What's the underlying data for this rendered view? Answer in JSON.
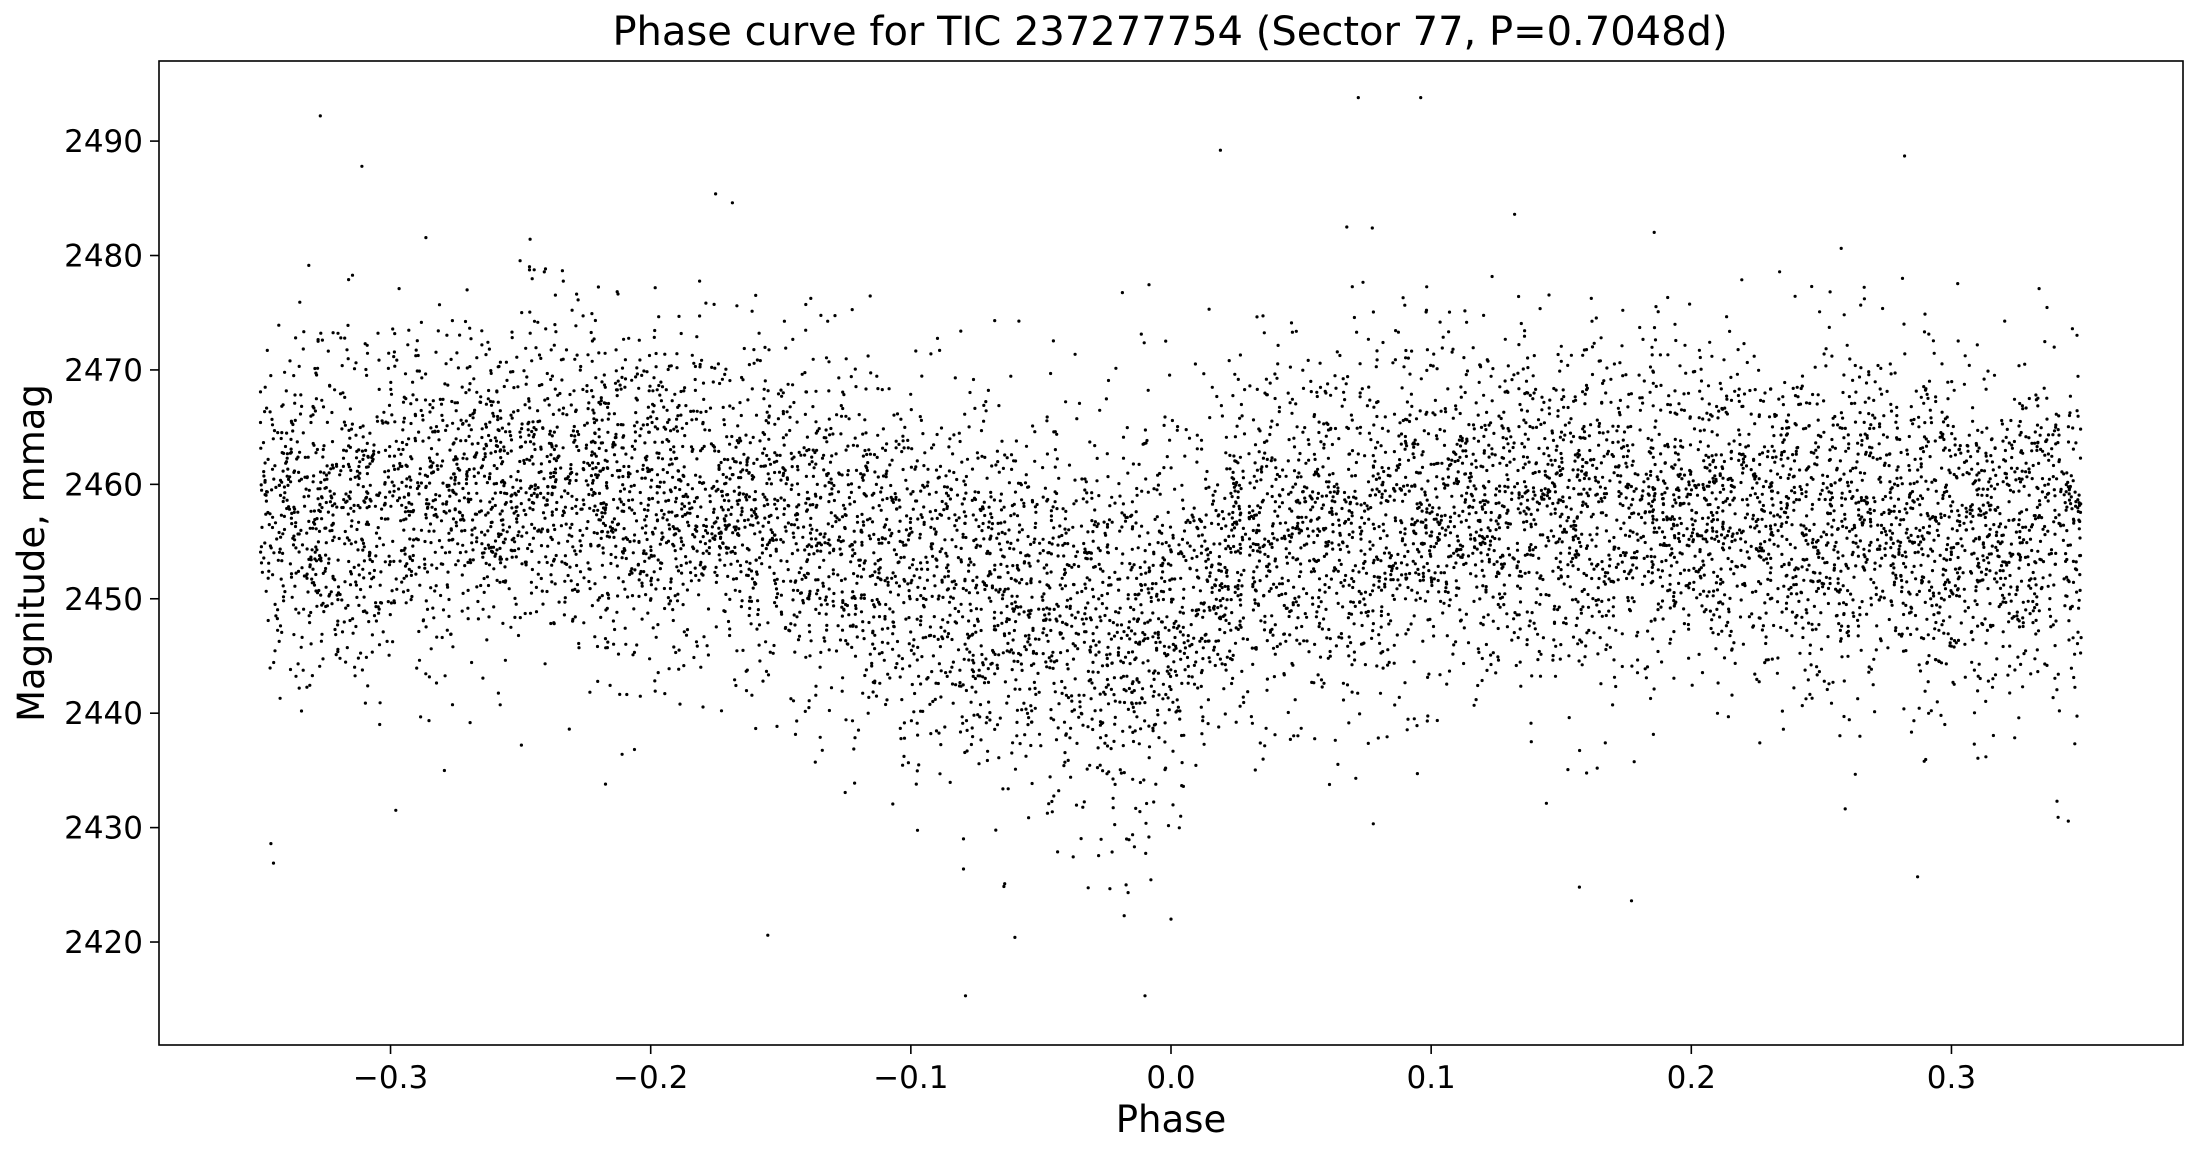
{
  "chart_data": {
    "type": "scatter",
    "title": "Phase curve for TIC 237277754 (Sector 77, P=0.7048d)",
    "xlabel": "Phase",
    "ylabel": "Magnitude, mmag",
    "xlim": [
      -0.389,
      0.389
    ],
    "ylim": [
      2411,
      2497
    ],
    "xticks": [
      -0.3,
      -0.2,
      -0.1,
      0.0,
      0.1,
      0.2,
      0.3
    ],
    "xtick_labels": [
      "−0.3",
      "−0.2",
      "−0.1",
      "0.0",
      "0.1",
      "0.2",
      "0.3"
    ],
    "yticks": [
      2420,
      2430,
      2440,
      2450,
      2460,
      2470,
      2480,
      2490
    ],
    "ytick_labels": [
      "2420",
      "2430",
      "2440",
      "2450",
      "2460",
      "2470",
      "2480",
      "2490"
    ],
    "grid": false,
    "legend": "none",
    "marker_color": "#000000",
    "series": [
      {
        "phase_range": [
          -0.35,
          0.35
        ],
        "point_count": 9000,
        "binned_profile": {
          "phase": [
            -0.35,
            -0.3,
            -0.25,
            -0.2,
            -0.15,
            -0.1,
            -0.08,
            -0.05,
            -0.03,
            -0.01,
            0.0,
            0.02,
            0.05,
            0.1,
            0.15,
            0.2,
            0.25,
            0.3,
            0.35
          ],
          "mean_mmag": [
            2457,
            2459,
            2460,
            2459,
            2457,
            2453,
            2451,
            2450,
            2448,
            2448,
            2450,
            2454,
            2455,
            2458,
            2458,
            2458,
            2457,
            2456,
            2456
          ],
          "scatter_sigma_mmag": [
            7.5,
            7.5,
            7.5,
            7.5,
            7.5,
            8.0,
            8.5,
            8.5,
            9.0,
            9.0,
            8.5,
            7.8,
            7.5,
            7.5,
            7.5,
            7.5,
            7.5,
            7.5,
            7.5
          ]
        },
        "notable_points": [
          {
            "x": -0.327,
            "y": 2492.2
          },
          {
            "x": -0.311,
            "y": 2487.8
          },
          {
            "x": 0.072,
            "y": 2493.8
          },
          {
            "x": 0.096,
            "y": 2493.8
          },
          {
            "x": 0.019,
            "y": 2489.2
          },
          {
            "x": 0.282,
            "y": 2488.7
          },
          {
            "x": -0.079,
            "y": 2415.3
          },
          {
            "x": -0.01,
            "y": 2415.3
          },
          {
            "x": -0.155,
            "y": 2420.6
          },
          {
            "x": -0.06,
            "y": 2420.4
          },
          {
            "x": -0.018,
            "y": 2422.3
          },
          {
            "x": 0.0,
            "y": 2422.0
          },
          {
            "x": 0.157,
            "y": 2424.8
          },
          {
            "x": 0.177,
            "y": 2423.6
          },
          {
            "x": -0.346,
            "y": 2428.6
          },
          {
            "x": -0.345,
            "y": 2426.9
          },
          {
            "x": 0.341,
            "y": 2430.9
          },
          {
            "x": 0.287,
            "y": 2425.7
          }
        ]
      }
    ]
  }
}
